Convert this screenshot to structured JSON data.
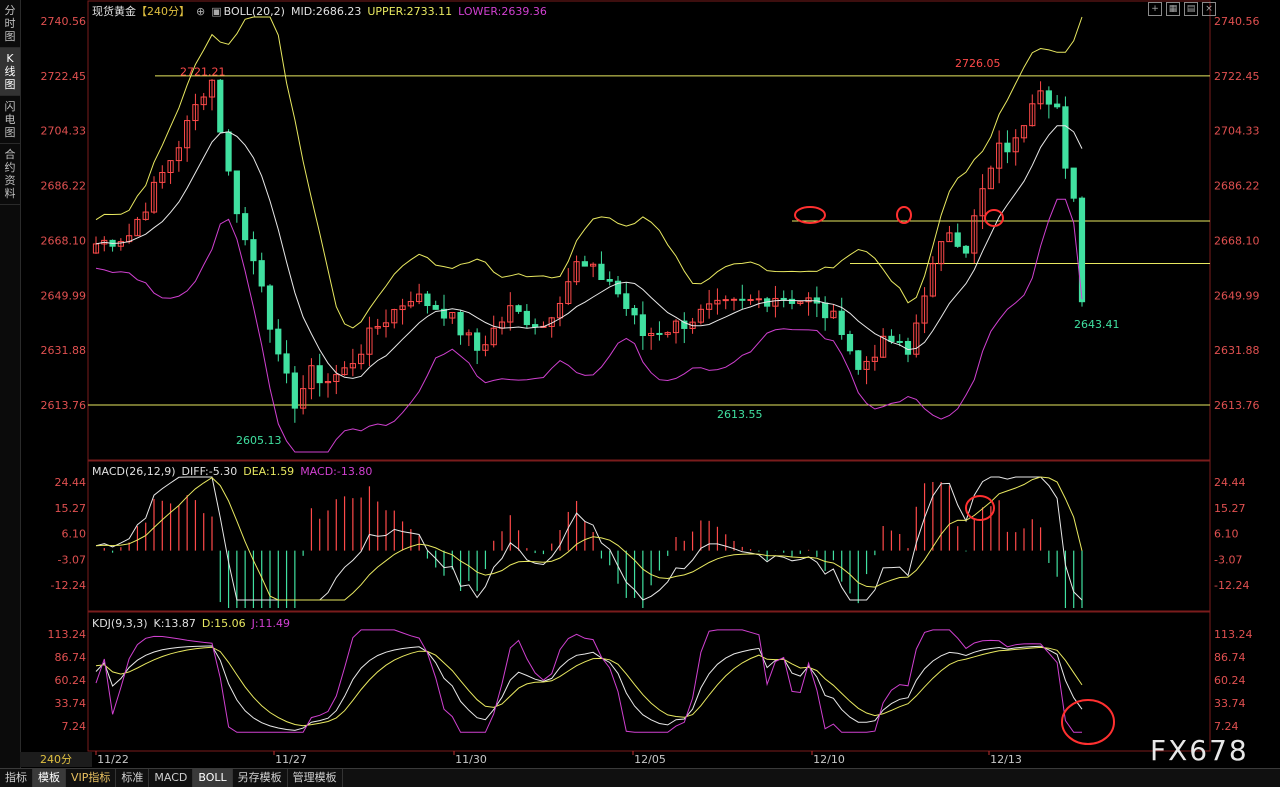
{
  "left_tabs": [
    "分时图",
    "K线图",
    "闪电图",
    "合约资料"
  ],
  "main_panel": {
    "title": "现货黄金",
    "period_tag": "【240分】",
    "indicator": "BOLL(20,2)",
    "mid": "MID:2686.23",
    "upper": "UPPER:2733.11",
    "lower": "LOWER:2639.36",
    "y_ticks": [
      "2740.56",
      "2722.45",
      "2704.33",
      "2686.22",
      "2668.10",
      "2649.99",
      "2631.88",
      "2613.76"
    ],
    "annotations": {
      "high_left": "2721.21",
      "high_right": "2726.05",
      "low_left": "2605.13",
      "low_mid": "2613.55",
      "last_low": "2643.41"
    }
  },
  "macd_panel": {
    "title": "MACD(26,12,9)",
    "diff": "DIFF:-5.30",
    "dea": "DEA:1.59",
    "macd": "MACD:-13.80",
    "y_ticks": [
      "24.44",
      "15.27",
      "6.10",
      "-3.07",
      "-12.24"
    ]
  },
  "kdj_panel": {
    "title": "KDJ(9,3,3)",
    "k": "K:13.87",
    "d": "D:15.06",
    "j": "J:11.49",
    "y_ticks": [
      "113.24",
      "86.74",
      "60.24",
      "33.74",
      "7.24"
    ]
  },
  "x_ticks": [
    "11/22",
    "11/27",
    "11/30",
    "12/05",
    "12/10",
    "12/13"
  ],
  "period_badge": "240分",
  "watermark": "FX678",
  "bottom_tabs": [
    {
      "label": "指标",
      "active": false
    },
    {
      "label": "模板",
      "active": true
    },
    {
      "label": "VIP指标",
      "active": false
    },
    {
      "label": "标准",
      "active": false
    },
    {
      "label": "MACD",
      "active": false
    },
    {
      "label": "BOLL",
      "active": true
    },
    {
      "label": "另存模板",
      "active": false
    },
    {
      "label": "管理模板",
      "active": false
    }
  ],
  "colors": {
    "up": "#ff4a4a",
    "down": "#40e0a0",
    "boll_mid": "#e8e8e8",
    "boll_upper": "#e8e860",
    "boll_lower": "#d040d0",
    "hline": "#e8e860",
    "circle": "#ff3030"
  }
}
